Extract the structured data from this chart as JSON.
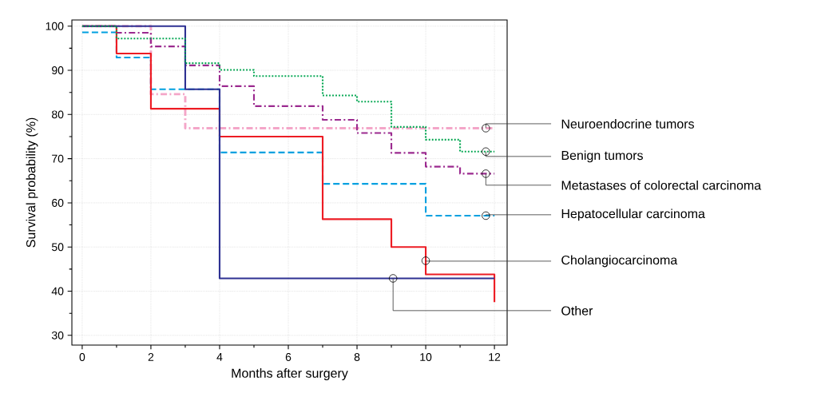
{
  "chart_data": {
    "type": "step",
    "xlabel": "Months after surgery",
    "ylabel": "Survival probability (%)",
    "xlim": [
      -0.3,
      12.37
    ],
    "ylim": [
      27.8,
      101.4
    ],
    "xticks": [
      0,
      2,
      4,
      6,
      8,
      10,
      12
    ],
    "yticks": [
      30,
      40,
      50,
      60,
      70,
      80,
      90,
      100
    ],
    "grid": true,
    "series": [
      {
        "name": "Neuroendocrine tumors",
        "color": "#f4a6c8",
        "line_style": "dashdot",
        "x": [
          0,
          2,
          3,
          12
        ],
        "values": [
          100,
          84.6,
          76.9,
          76.9
        ]
      },
      {
        "name": "Benign tumors",
        "color": "#00a650",
        "line_style": "dotted",
        "x": [
          0,
          1,
          3,
          4,
          5,
          7,
          8,
          9,
          10,
          11,
          12
        ],
        "values": [
          100,
          97.2,
          91.6,
          90.1,
          88.7,
          84.3,
          82.9,
          77.2,
          74.3,
          71.6,
          71.6
        ]
      },
      {
        "name": "Metastases of colorectal carcinoma",
        "color": "#9b2a8f",
        "line_style": "dashdot",
        "x": [
          0,
          1,
          2,
          3,
          4,
          5,
          7,
          8,
          9,
          10,
          11,
          12
        ],
        "values": [
          100,
          98.5,
          95.4,
          91.1,
          86.4,
          81.9,
          78.8,
          75.8,
          71.3,
          68.2,
          66.6,
          66.6
        ]
      },
      {
        "name": "Hepatocellular carcinoma",
        "color": "#00a0e0",
        "line_style": "dashed",
        "x": [
          0,
          1,
          2,
          4,
          7,
          10,
          12
        ],
        "values": [
          98.6,
          92.9,
          85.7,
          71.4,
          64.3,
          57.1,
          57.1
        ]
      },
      {
        "name": "Cholangiocarcinoma",
        "color": "#ed1c24",
        "line_style": "solid",
        "x": [
          0,
          1,
          2,
          4,
          7,
          9,
          10,
          12,
          12
        ],
        "values": [
          100,
          93.8,
          81.3,
          75,
          56.3,
          50,
          43.8,
          43.8,
          37.5
        ]
      },
      {
        "name": "Other",
        "color": "#2e3192",
        "line_style": "solid",
        "x": [
          0,
          3,
          4,
          12
        ],
        "values": [
          100,
          85.7,
          42.9,
          42.9
        ]
      }
    ]
  }
}
